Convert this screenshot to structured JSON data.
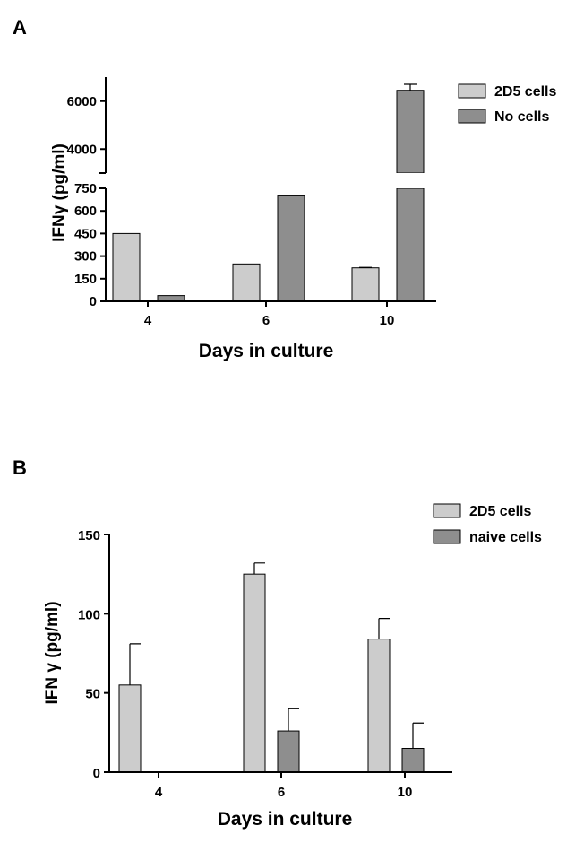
{
  "colors": {
    "light": "#cccccc",
    "dark": "#8e8e8e"
  },
  "chart_data": [
    {
      "panel": "A",
      "type": "bar",
      "categories": [
        "4",
        "6",
        "10"
      ],
      "xlabel": "Days in culture",
      "ylabel": "IFNγ (pg/ml)",
      "broken_axis": true,
      "ylim_lower": [
        0,
        750
      ],
      "ylim_upper": [
        3000,
        7000
      ],
      "yticks_lower": [
        "0",
        "150",
        "300",
        "450",
        "600",
        "750"
      ],
      "yticks_upper": [
        "4000",
        "6000"
      ],
      "legend_position": "top-right",
      "series": [
        {
          "name": "2D5 cells",
          "values": [
            450,
            248,
            222
          ],
          "errors": [
            0,
            0,
            3
          ]
        },
        {
          "name": "No cells",
          "values": [
            38,
            705,
            6450
          ],
          "errors": [
            0,
            0,
            250
          ]
        }
      ]
    },
    {
      "panel": "B",
      "type": "bar",
      "categories": [
        "4",
        "6",
        "10"
      ],
      "xlabel": "Days in culture",
      "ylabel": "IFN γ (pg/ml)",
      "ylim": [
        0,
        150
      ],
      "yticks": [
        "0",
        "50",
        "100",
        "150"
      ],
      "legend_position": "top-right",
      "series": [
        {
          "name": "2D5 cells",
          "values": [
            55,
            125,
            84
          ],
          "errors": [
            26,
            7,
            13
          ]
        },
        {
          "name": "naive cells",
          "values": [
            0,
            26,
            15
          ],
          "errors": [
            0,
            14,
            16
          ]
        }
      ]
    }
  ]
}
